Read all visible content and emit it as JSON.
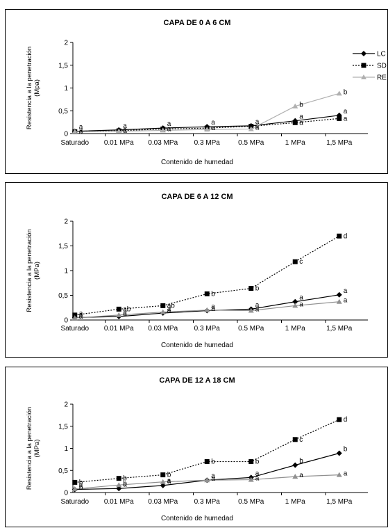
{
  "charts": [
    {
      "type": "line",
      "title": "CAPA DE 0 A 6 CM",
      "xlabel": "Contenido de humedad",
      "ylabel": "Resistencia a la penetración (Mpa)",
      "ylabel_lines": [
        "Resistencia a la penetración",
        "(Mpa)"
      ],
      "categories": [
        "Saturado",
        "0.01 MPa",
        "0.03 MPa",
        "0.3 MPa",
        "0.5 MPa",
        "1 MPa",
        "1,5 MPa"
      ],
      "yticks": [
        "0",
        "0,5",
        "1",
        "1,5",
        "2"
      ],
      "ylim": [
        0,
        2
      ],
      "legend": "right",
      "legend_labels": [
        "LC",
        "SD",
        "RE"
      ],
      "series": [
        {
          "name": "LC",
          "marker": "diamond",
          "color": "#000000",
          "dash": "solid",
          "values": [
            0.05,
            0.08,
            0.12,
            0.15,
            0.17,
            0.28,
            0.4
          ],
          "labels": [
            "a",
            "a",
            "a",
            "a",
            "a",
            "a",
            "a"
          ]
        },
        {
          "name": "SD",
          "marker": "square",
          "color": "#000000",
          "dash": "dotted",
          "values": [
            0.04,
            0.06,
            0.1,
            0.12,
            0.16,
            0.24,
            0.33
          ],
          "labels": [
            "a",
            "a",
            "a",
            "a",
            "a",
            "a",
            "a"
          ]
        },
        {
          "name": "RE",
          "marker": "triangle",
          "color": "#b0b0b0",
          "dash": "solid",
          "values": [
            0.04,
            0.05,
            0.07,
            0.09,
            0.1,
            0.6,
            0.88
          ],
          "labels": [
            "a",
            "a",
            "a",
            "a",
            "a",
            "b",
            "b"
          ]
        }
      ]
    },
    {
      "type": "line",
      "title": "CAPA DE 6 A 12 CM",
      "xlabel": "Contenido de humedad",
      "ylabel": "Resistencia a la penetración (MPa)",
      "ylabel_lines": [
        "Resistencia a la penetración",
        "(MPa)"
      ],
      "categories": [
        "Saturado",
        "0.01 MPa",
        "0.03 MPa",
        "0.3 MPa",
        "0.5 MPa",
        "1 MPa",
        "1,5 MPa"
      ],
      "yticks": [
        "0",
        "0,5",
        "1",
        "1,5",
        "2"
      ],
      "ylim": [
        0,
        2
      ],
      "legend": "",
      "legend_labels": [],
      "series": [
        {
          "name": "",
          "marker": "diamond",
          "color": "#000000",
          "dash": "solid",
          "values": [
            0.05,
            0.07,
            0.14,
            0.19,
            0.22,
            0.37,
            0.51
          ],
          "labels": [
            "a",
            "a",
            "a",
            "a",
            "a",
            "a",
            "a"
          ]
        },
        {
          "name": "",
          "marker": "square",
          "color": "#000000",
          "dash": "dotted",
          "values": [
            0.1,
            0.22,
            0.29,
            0.53,
            0.64,
            1.18,
            1.7
          ],
          "labels": [
            "a",
            "ab",
            "ab",
            "b",
            "b",
            "c",
            "d"
          ]
        },
        {
          "name": "",
          "marker": "triangle",
          "color": "#909090",
          "dash": "solid",
          "values": [
            0.04,
            0.1,
            0.16,
            0.2,
            0.19,
            0.29,
            0.37
          ],
          "labels": [
            "a",
            "a",
            "a",
            "a",
            "a",
            "a",
            "a"
          ]
        }
      ]
    },
    {
      "type": "line",
      "title": "CAPA DE 12 A 18 CM",
      "xlabel": "Contenido de humedad",
      "ylabel": "Resistencia a la penetración (MPa)",
      "ylabel_lines": [
        "Resistencia a la penetración",
        "(MPa)"
      ],
      "categories": [
        "Saturado",
        "0.01 MPa",
        "0.03 MPa",
        "0.3 MPa",
        "0.5 MPa",
        "1 MPa",
        "1,5 MPa"
      ],
      "yticks": [
        "0",
        "0,5",
        "1",
        "1,5",
        "2"
      ],
      "ylim": [
        0,
        2
      ],
      "legend": "",
      "legend_labels": [],
      "series": [
        {
          "name": "",
          "marker": "diamond",
          "color": "#000000",
          "dash": "solid",
          "values": [
            0.07,
            0.09,
            0.16,
            0.28,
            0.34,
            0.62,
            0.89
          ],
          "labels": [
            "a",
            "a",
            "a",
            "a",
            "a",
            "b",
            "b"
          ]
        },
        {
          "name": "",
          "marker": "square",
          "color": "#000000",
          "dash": "dotted",
          "values": [
            0.23,
            0.32,
            0.4,
            0.7,
            0.7,
            1.2,
            1.65
          ],
          "labels": [
            "b",
            "b",
            "b",
            "b",
            "b",
            "c",
            "d"
          ]
        },
        {
          "name": "",
          "marker": "triangle",
          "color": "#909090",
          "dash": "solid",
          "values": [
            0.08,
            0.17,
            0.24,
            0.28,
            0.29,
            0.36,
            0.4
          ],
          "labels": [
            "b",
            "b",
            "a",
            "a",
            "a",
            "a",
            "a"
          ]
        }
      ]
    }
  ]
}
